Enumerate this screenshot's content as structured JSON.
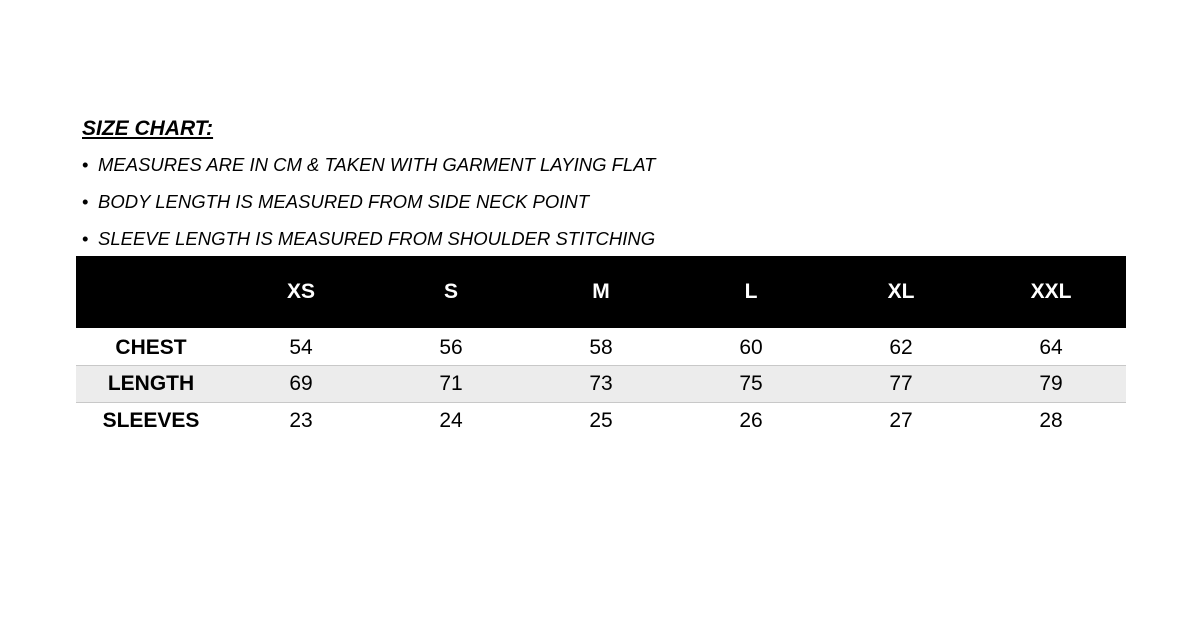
{
  "title": "SIZE CHART:",
  "notes": [
    "MEASURES ARE IN CM & TAKEN WITH GARMENT LAYING FLAT",
    "BODY LENGTH IS MEASURED FROM SIDE NECK POINT",
    "SLEEVE LENGTH IS MEASURED FROM SHOULDER STITCHING"
  ],
  "table": {
    "header": [
      "",
      "XS",
      "S",
      "M",
      "L",
      "XL",
      "XXL"
    ],
    "rows": [
      {
        "label": "CHEST",
        "values": [
          "54",
          "56",
          "58",
          "60",
          "62",
          "64"
        ]
      },
      {
        "label": "LENGTH",
        "values": [
          "69",
          "71",
          "73",
          "75",
          "77",
          "79"
        ]
      },
      {
        "label": "SLEEVES",
        "values": [
          "23",
          "24",
          "25",
          "26",
          "27",
          "28"
        ]
      }
    ]
  },
  "colors": {
    "header_bg": "#000000",
    "header_text": "#ffffff",
    "shaded_row": "#ececec"
  }
}
